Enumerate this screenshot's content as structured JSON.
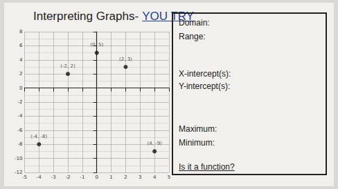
{
  "title": "Interpreting Graphs-",
  "title_emphasis": "YOU TRY",
  "questions": [
    "Domain:",
    "Range:",
    "X-intercept(s):",
    "Y-intercept(s):",
    "Maximum:",
    "Minimum:",
    "Is it a function?"
  ],
  "chart_data": {
    "type": "scatter",
    "x": [
      -4,
      -2,
      0,
      2,
      4
    ],
    "values": [
      -8,
      2,
      5,
      3,
      -9
    ],
    "value_labels": [
      "(-4, -8)",
      "(-2, 2)",
      "(0, 5)",
      "(2, 3)",
      "(4, -9)"
    ],
    "color": "#111111",
    "xlim": [
      -5,
      5
    ],
    "xticks": [
      -5,
      -4,
      -3,
      -2,
      -1,
      0,
      1,
      2,
      3,
      4,
      5
    ],
    "ylim": [
      -12,
      8
    ],
    "yticks": [
      -12,
      -10,
      -8,
      -6,
      -4,
      -2,
      0,
      2,
      4,
      6,
      8
    ],
    "grid": true,
    "data_labels": true
  }
}
